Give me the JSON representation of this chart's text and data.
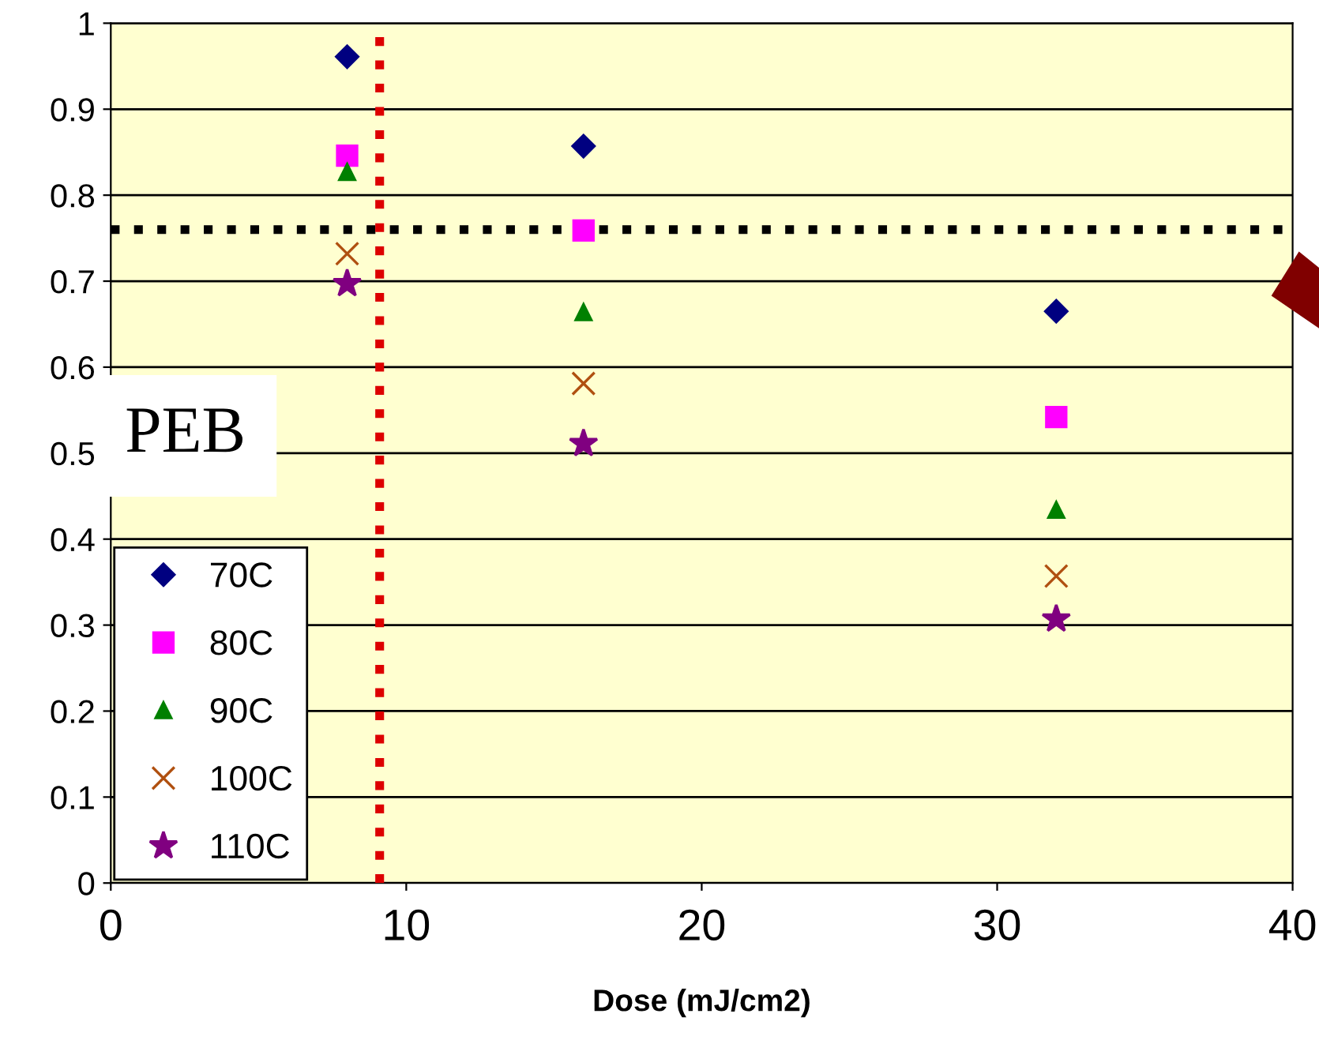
{
  "chart_data": {
    "type": "scatter",
    "xlabel": "Dose (mJ/cm2)",
    "x": [
      8,
      16,
      32
    ],
    "series": [
      {
        "name": "70C",
        "color": "#000080",
        "marker": "diamond",
        "values": [
          0.961,
          0.857,
          0.665
        ]
      },
      {
        "name": "80C",
        "color": "#ff00ff",
        "marker": "square",
        "values": [
          0.846,
          0.759,
          0.542
        ]
      },
      {
        "name": "90C",
        "color": "#008000",
        "marker": "triangle",
        "values": [
          0.827,
          0.664,
          0.434
        ]
      },
      {
        "name": "100C",
        "color": "#b05010",
        "marker": "cross",
        "values": [
          0.732,
          0.581,
          0.357
        ]
      },
      {
        "name": "110C",
        "color": "#800080",
        "marker": "star",
        "values": [
          0.697,
          0.511,
          0.307
        ]
      }
    ],
    "xlim": [
      0,
      40
    ],
    "xticks": [
      0,
      10,
      20,
      30,
      40
    ],
    "ylim": [
      0,
      1
    ],
    "yticks": [
      0,
      0.1,
      0.2,
      0.3,
      0.4,
      0.5,
      0.6,
      0.7,
      0.8,
      0.9,
      1
    ],
    "ref_lines": [
      {
        "axis": "y",
        "value": 0.76,
        "color": "#000000",
        "line_style": "dotted"
      },
      {
        "axis": "x",
        "value": 9.1,
        "color": "#dd0000",
        "line_style": "dotted"
      }
    ],
    "annotations": [
      "PEB"
    ],
    "grid": "y",
    "legend": "bottom left"
  }
}
